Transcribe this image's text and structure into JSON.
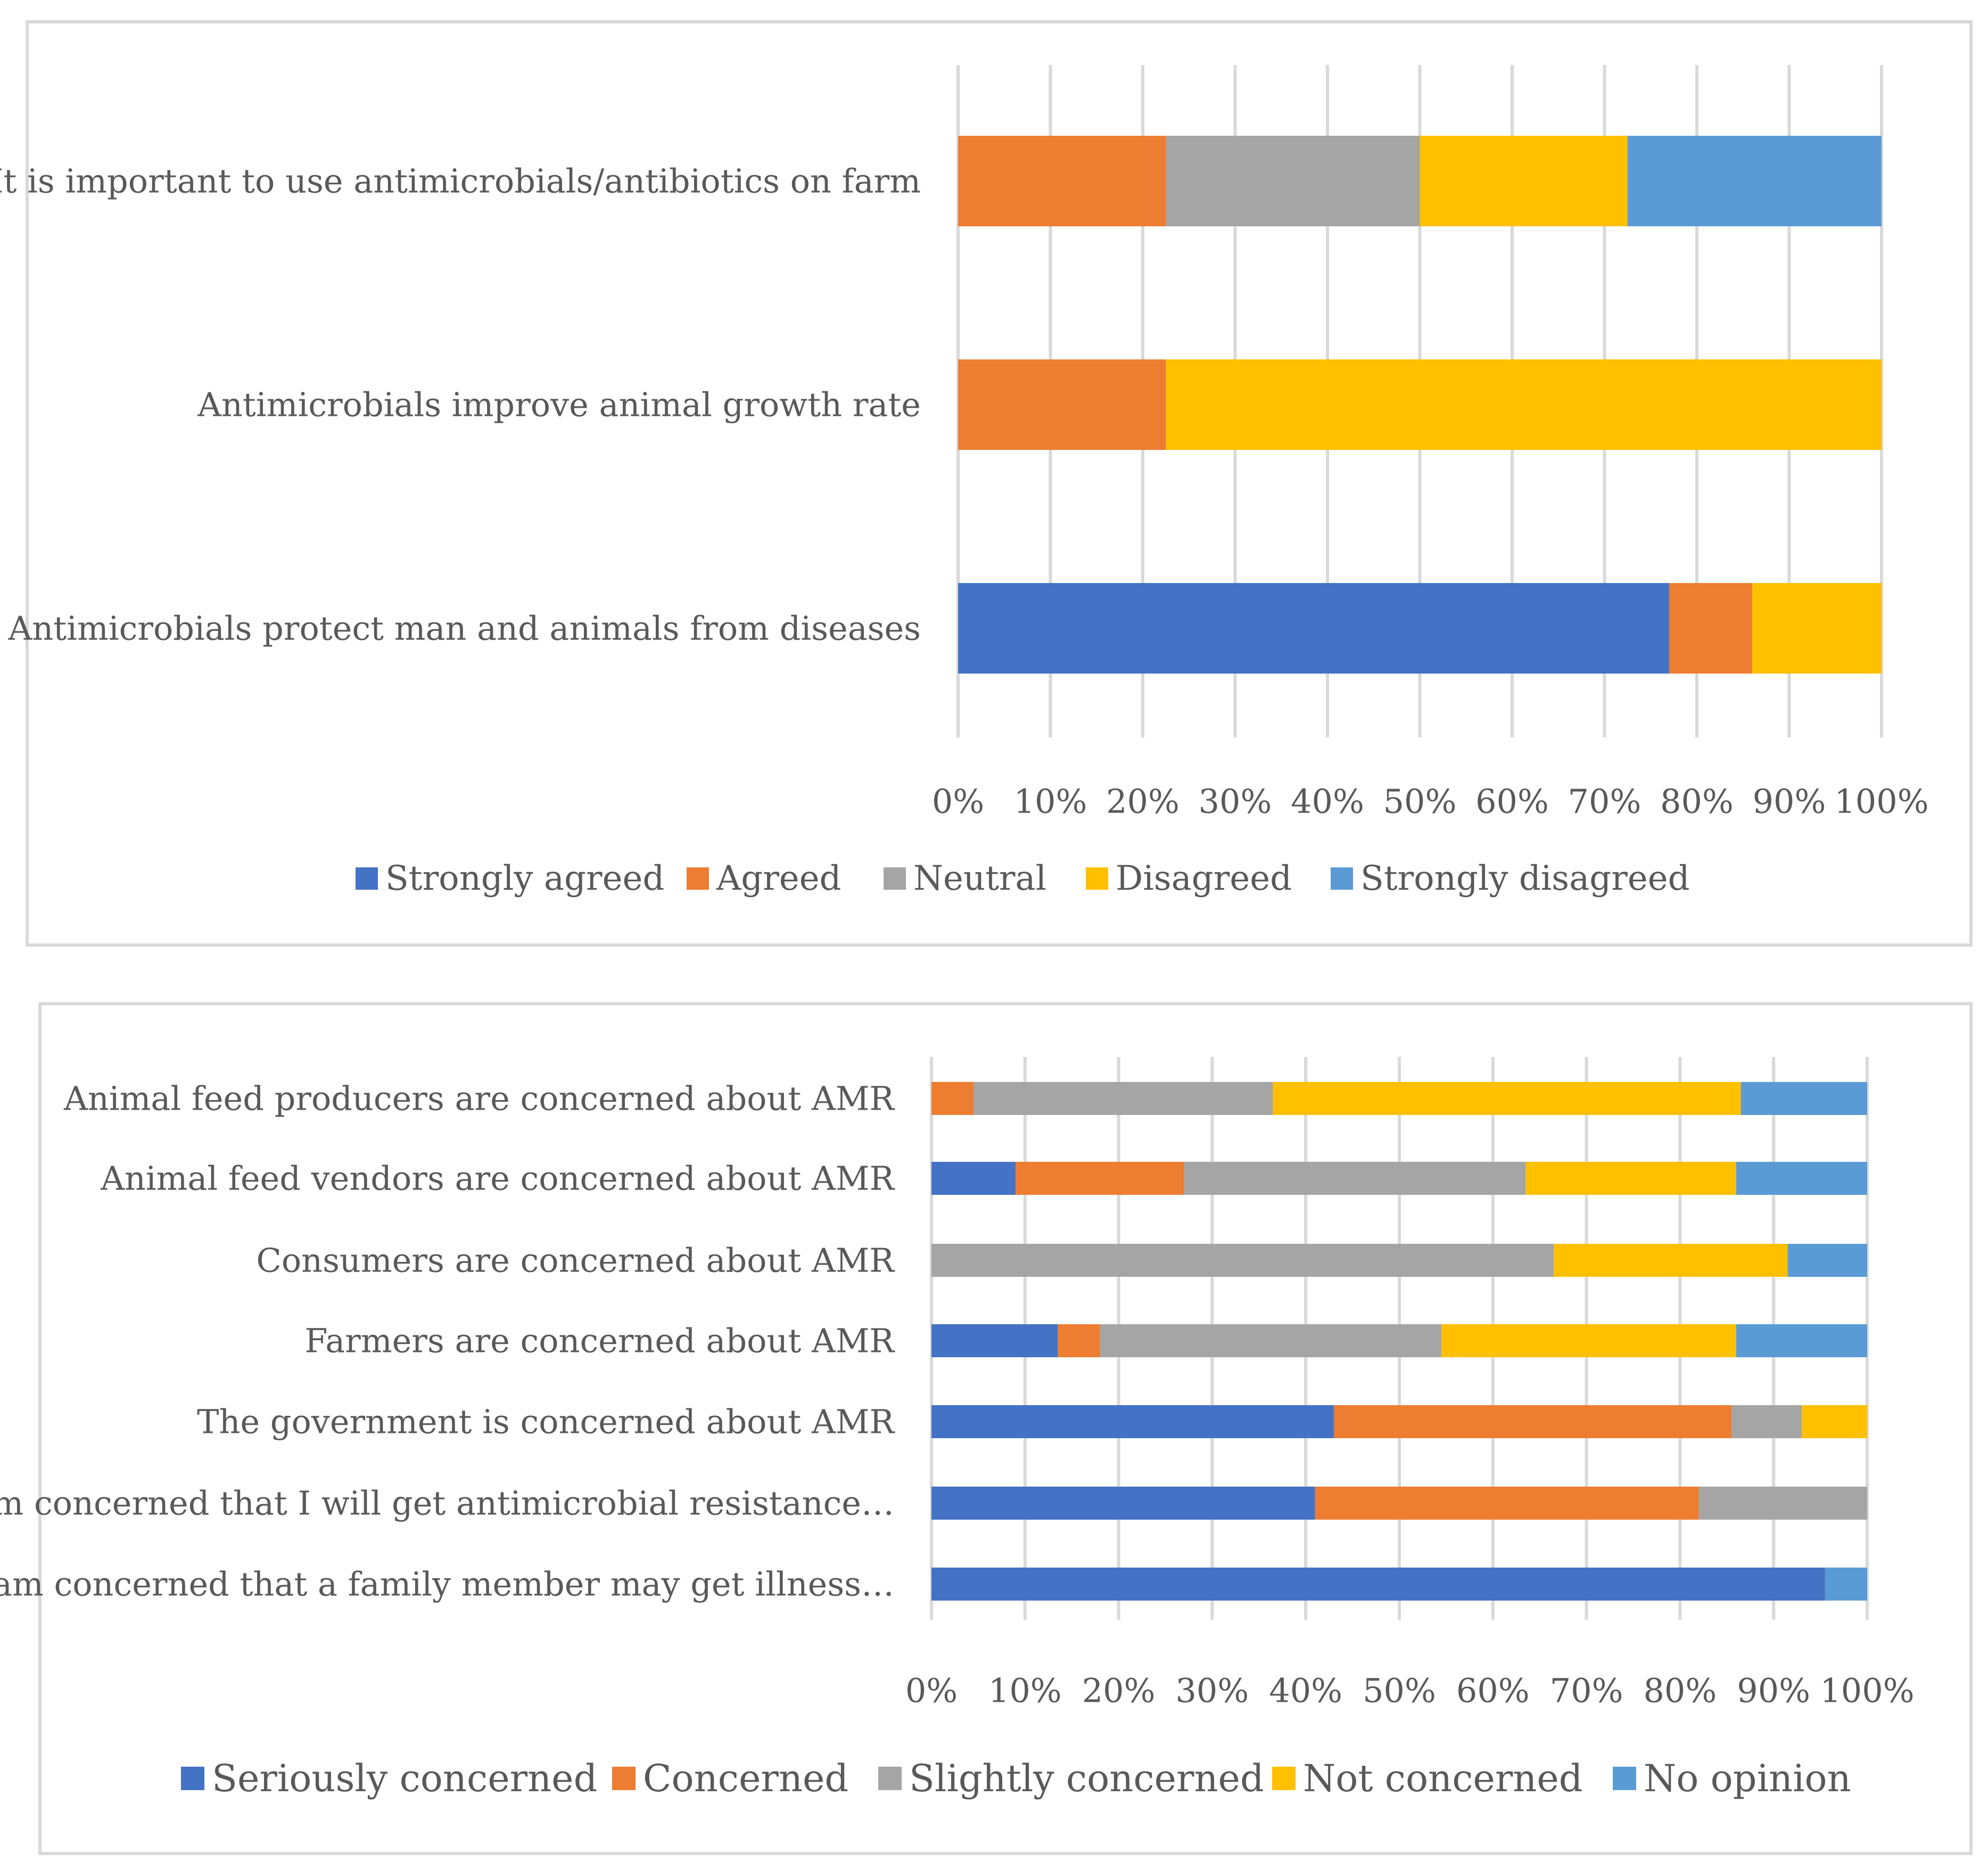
{
  "chart_data": [
    {
      "type": "bar",
      "orientation": "horizontal",
      "stacked": "percent",
      "categories": [
        "It is important to use antimicrobials/antibiotics on farm",
        "Antimicrobials improve animal growth rate",
        "Antimicrobials protect man and animals from diseases"
      ],
      "series": [
        {
          "name": "Strongly agreed",
          "color": "#4472c4",
          "values": [
            0,
            0,
            77
          ]
        },
        {
          "name": "Agreed",
          "color": "#ed7d31",
          "values": [
            22.5,
            22.5,
            9
          ]
        },
        {
          "name": "Neutral",
          "color": "#a5a5a5",
          "values": [
            27.5,
            0,
            0
          ]
        },
        {
          "name": "Disagreed",
          "color": "#ffc000",
          "values": [
            22.5,
            77.5,
            14
          ]
        },
        {
          "name": "Strongly disagreed",
          "color": "#5b9bd5",
          "values": [
            27.5,
            0,
            0
          ]
        }
      ],
      "xticks": [
        "0%",
        "10%",
        "20%",
        "30%",
        "40%",
        "50%",
        "60%",
        "70%",
        "80%",
        "90%",
        "100%"
      ],
      "xlim": [
        0,
        100
      ],
      "grid": true,
      "legend": "bottom"
    },
    {
      "type": "bar",
      "orientation": "horizontal",
      "stacked": "percent",
      "categories": [
        "Animal feed producers are concerned about AMR",
        "Animal feed vendors are concerned about AMR",
        "Consumers are concerned about AMR",
        "Farmers are concerned about AMR",
        "The government is concerned about AMR",
        "I am concerned that I will get antimicrobial resistance…",
        "I am concerned that a family member may get illness…"
      ],
      "series": [
        {
          "name": "Seriously concerned",
          "color": "#4472c4",
          "values": [
            0,
            9,
            0,
            13.5,
            43,
            41,
            95.5
          ]
        },
        {
          "name": "Concerned",
          "color": "#ed7d31",
          "values": [
            4.5,
            18,
            0,
            4.5,
            42.5,
            41,
            0
          ]
        },
        {
          "name": "Slightly concerned",
          "color": "#a5a5a5",
          "values": [
            32,
            36.5,
            66.5,
            36.5,
            7.5,
            18,
            0
          ]
        },
        {
          "name": "Not concerned",
          "color": "#ffc000",
          "values": [
            50,
            22.5,
            25,
            31.5,
            7,
            0,
            0
          ]
        },
        {
          "name": "No opinion",
          "color": "#5b9bd5",
          "values": [
            13.5,
            14,
            8.5,
            14,
            0,
            0,
            4.5
          ]
        }
      ],
      "xticks": [
        "0%",
        "10%",
        "20%",
        "30%",
        "40%",
        "50%",
        "60%",
        "70%",
        "80%",
        "90%",
        "100%"
      ],
      "xlim": [
        0,
        100
      ],
      "grid": true,
      "legend": "bottom"
    }
  ]
}
